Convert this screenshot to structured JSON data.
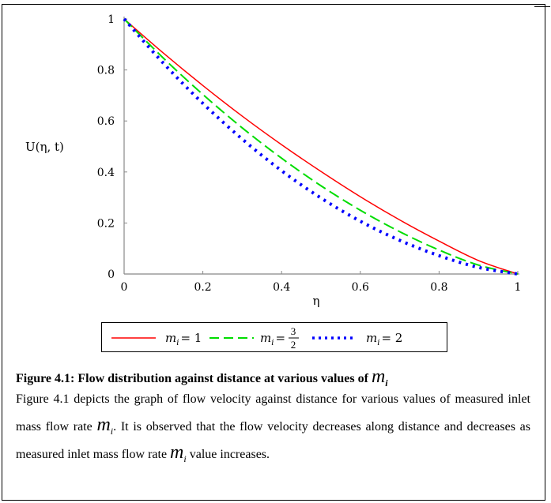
{
  "chart_data": {
    "type": "line",
    "ylabel": "U(η, t)",
    "xlabel": "η",
    "xlim": [
      0,
      1
    ],
    "ylim": [
      0,
      1
    ],
    "x_ticks": [
      "0",
      "0.2",
      "0.4",
      "0.6",
      "0.8",
      "1"
    ],
    "y_ticks": [
      "0",
      "0.2",
      "0.4",
      "0.6",
      "0.8",
      "1"
    ],
    "legend_position": "bottom",
    "x": [
      0,
      0.1,
      0.2,
      0.3,
      0.4,
      0.5,
      0.6,
      0.7,
      0.8,
      0.9,
      1.0
    ],
    "series": [
      {
        "name": "m_i = 1",
        "color": "#ff0000",
        "style": "solid",
        "values": [
          1.0,
          0.866,
          0.739,
          0.619,
          0.507,
          0.402,
          0.303,
          0.212,
          0.129,
          0.053,
          0.0
        ]
      },
      {
        "name": "m_i = 3/2",
        "color": "#00dd00",
        "style": "dashed",
        "values": [
          1.0,
          0.846,
          0.704,
          0.573,
          0.454,
          0.346,
          0.25,
          0.166,
          0.094,
          0.035,
          0.0
        ]
      },
      {
        "name": "m_i = 2",
        "color": "#0000ff",
        "style": "dotted",
        "values": [
          1.0,
          0.826,
          0.669,
          0.529,
          0.405,
          0.298,
          0.207,
          0.132,
          0.072,
          0.026,
          0.0
        ]
      }
    ]
  },
  "legend": {
    "item1_label": "m",
    "item1_sub": "i",
    "item1_eq": "= 1",
    "item2_label": "m",
    "item2_sub": "i",
    "item2_eq": "=",
    "item2_num": "3",
    "item2_den": "2",
    "item3_label": "m",
    "item3_sub": "i",
    "item3_eq": "= 2"
  },
  "caption": {
    "text": "Figure 4.1: Flow distribution against distance at various values of",
    "var": "m",
    "sub": "i"
  },
  "paragraph": {
    "part1": "Figure 4.1 depicts the graph of flow velocity against distance for various values of measured inlet mass flow rate",
    "var1": "m",
    "sub1": "i",
    "part2": ". It is observed that the flow velocity decreases along distance and decreases as measured inlet mass flow rate",
    "var2": "m",
    "sub2": "i",
    "part3": "value increases."
  }
}
